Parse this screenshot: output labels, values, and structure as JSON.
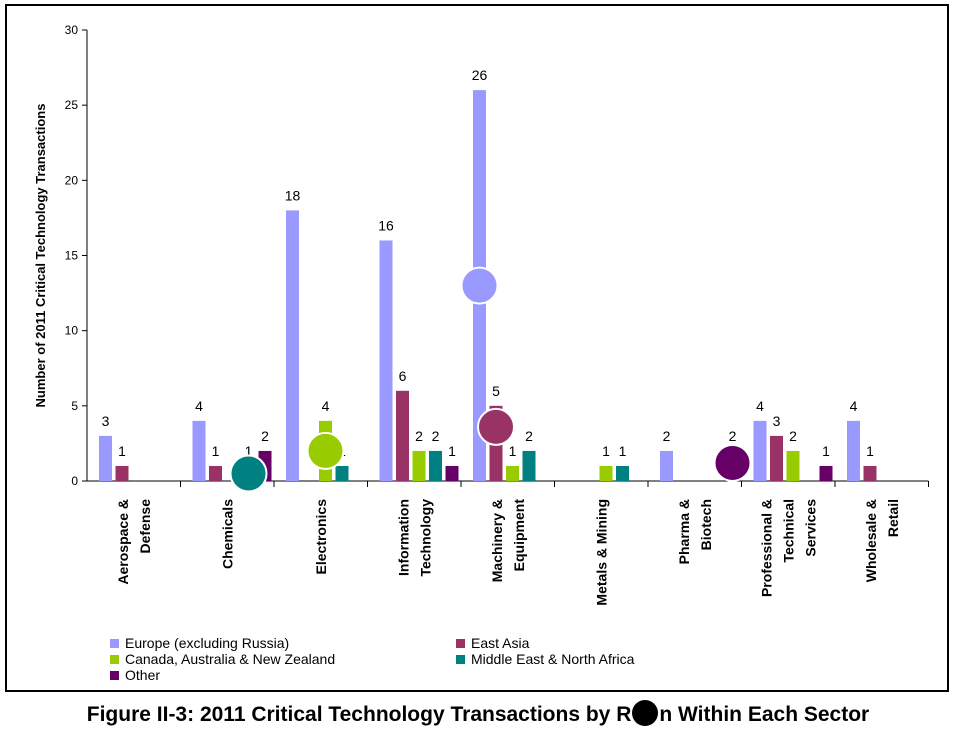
{
  "caption": {
    "before": "Figure II-3: 2011 Critical Technology Transactions by R",
    "after": "n Within Each Sector"
  },
  "chart_data": {
    "type": "bar",
    "title": "",
    "ylabel": "Number of 2011 Critical Technology Transactions",
    "xlabel": "",
    "ylim": [
      0,
      30
    ],
    "yticks": [
      0,
      5,
      10,
      15,
      20,
      25,
      30
    ],
    "grid": false,
    "legend_position": "bottom",
    "categories": [
      [
        "Aerospace &",
        "Defense"
      ],
      [
        "Chemicals"
      ],
      [
        "Electronics"
      ],
      [
        "Information",
        "Technology"
      ],
      [
        "Machinery &",
        "Equipment"
      ],
      [
        "Metals & Mining"
      ],
      [
        "Pharma &",
        "Biotech"
      ],
      [
        "Professional &",
        "Technical",
        "Services"
      ],
      [
        "Wholesale &",
        "Retail"
      ]
    ],
    "series": [
      {
        "name": "Europe (excluding Russia)",
        "color": "#9999ff",
        "values": [
          3,
          4,
          18,
          16,
          26,
          0,
          2,
          4,
          4
        ]
      },
      {
        "name": "East Asia",
        "color": "#993366",
        "values": [
          1,
          1,
          0,
          6,
          5,
          0,
          0,
          3,
          1
        ]
      },
      {
        "name": "Canada, Australia & New Zealand",
        "color": "#99cc00",
        "values": [
          0,
          0,
          4,
          2,
          1,
          1,
          0,
          2,
          0
        ]
      },
      {
        "name": "Middle East & North Africa",
        "color": "#008080",
        "values": [
          0,
          1,
          1,
          2,
          2,
          1,
          0,
          0,
          0
        ]
      },
      {
        "name": "Other",
        "color": "#660066",
        "values": [
          0,
          2,
          0,
          1,
          0,
          0,
          2,
          1,
          0
        ]
      }
    ],
    "data_labels": [
      [
        3,
        4,
        18,
        16,
        26,
        null,
        2,
        4,
        4
      ],
      [
        1,
        1,
        null,
        6,
        5,
        null,
        null,
        3,
        1
      ],
      [
        null,
        null,
        4,
        2,
        1,
        1,
        null,
        2,
        null
      ],
      [
        null,
        1,
        1,
        2,
        2,
        1,
        null,
        null,
        null
      ],
      [
        null,
        2,
        null,
        1,
        null,
        null,
        2,
        1,
        null
      ]
    ],
    "overlay_markers": [
      {
        "color": "#008080",
        "category": "Chemicals",
        "series": "Middle East & North Africa",
        "value": 0.5
      },
      {
        "color": "#99cc00",
        "category": "Electronics",
        "series": "Canada, Australia & New Zealand",
        "value": 2
      },
      {
        "color": "#9999ff",
        "category": "Machinery &",
        "series": "Europe (excluding Russia)",
        "value": 13
      },
      {
        "color": "#993366",
        "category": "Machinery &",
        "series": "East Asia",
        "value": 3.6
      },
      {
        "color": "#660066",
        "category": "Pharma &",
        "series": "Other",
        "value": 1.2
      }
    ]
  }
}
